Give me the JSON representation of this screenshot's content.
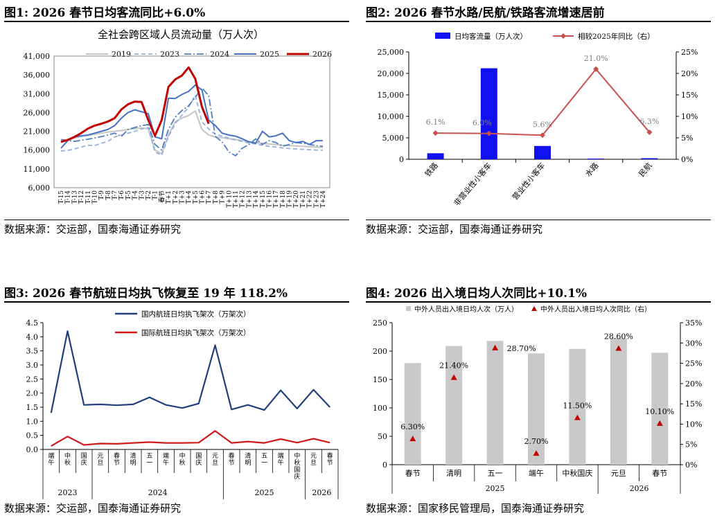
{
  "panels": [
    {
      "title": "图1:  2026 春节日均客流同比+6.0%",
      "source": "数据来源：交运部，国泰海通证券研究"
    },
    {
      "title": "图2:  2026 春节水路/民航/铁路客流增速居前",
      "source": "数据来源：交运部，国泰海通证券研究"
    },
    {
      "title": "图3:  2026 春节航班日均执飞恢复至 19 年 118.2%",
      "source": "数据来源：交运部，国泰海通证券研究"
    },
    {
      "title": "图4:  2026 出入境日均人次同比+10.1%",
      "source": "数据来源：国家移民管理局，国泰海通证券研究"
    }
  ],
  "chart_data": [
    {
      "type": "line",
      "title": "全社会跨区域人员流动量（万人次）",
      "x": [
        "T-15",
        "T-14",
        "T-13",
        "T-12",
        "T-11",
        "T-10",
        "T-9",
        "T-8",
        "T-7",
        "T-6",
        "T-5",
        "T-4",
        "T-3",
        "T-2",
        "T-1",
        "春节",
        "T+1",
        "T+2",
        "T+3",
        "T+4",
        "T+5",
        "T+6",
        "T+7",
        "T+8",
        "T+9",
        "T+10",
        "T+11",
        "T+12",
        "T+13",
        "T+14",
        "T+15",
        "T+16",
        "T+17",
        "T+18",
        "T+19",
        "T+20",
        "T+21",
        "T+22",
        "T+23",
        "T+24"
      ],
      "ylim": [
        6000,
        41000
      ],
      "yticks": [
        6000,
        11000,
        16000,
        21000,
        26000,
        31000,
        36000,
        41000
      ],
      "legend_position": "top",
      "series": [
        {
          "name": "2019",
          "color": "#c8c8c8",
          "dash": "solid",
          "width": 2.2,
          "values": [
            18000,
            18800,
            19200,
            19600,
            19900,
            20200,
            20500,
            20800,
            21000,
            21200,
            21500,
            21700,
            21900,
            21700,
            16000,
            15000,
            20000,
            23500,
            24500,
            25200,
            26400,
            21500,
            20000,
            19500,
            19300,
            19000,
            18800,
            18500,
            18200,
            18000,
            17800,
            17600,
            17500,
            17300,
            17200,
            17100,
            17000,
            16900,
            16800,
            16700
          ]
        },
        {
          "name": "2023",
          "color": "#8fb0dc",
          "dash": "6,4",
          "width": 1.8,
          "values": [
            15800,
            15900,
            16300,
            16800,
            17300,
            17200,
            17800,
            18300,
            19500,
            20000,
            20500,
            21000,
            21600,
            22000,
            15500,
            14600,
            19600,
            23000,
            25300,
            27400,
            30600,
            23500,
            21600,
            20200,
            19700,
            19200,
            18700,
            18300,
            17900,
            17600,
            17300,
            17000,
            16800,
            16600,
            16400,
            16300,
            16200,
            16100,
            16000,
            16000
          ]
        },
        {
          "name": "2024",
          "color": "#4f7fc0",
          "dash": "10,3,2,3",
          "width": 1.8,
          "values": [
            18800,
            18600,
            18300,
            18600,
            18900,
            19200,
            19600,
            20000,
            20500,
            19600,
            21500,
            22000,
            22500,
            22800,
            17500,
            16000,
            21500,
            24700,
            26500,
            27800,
            30000,
            32500,
            30500,
            19600,
            18200,
            15500,
            14500,
            16500,
            17500,
            19000,
            17500,
            18500,
            18000,
            17000,
            17500,
            18000,
            17800,
            17500,
            17200,
            17000
          ]
        },
        {
          "name": "2025",
          "color": "#4472c4",
          "dash": "solid",
          "width": 2.0,
          "values": [
            16500,
            18500,
            19500,
            19800,
            20000,
            20500,
            21000,
            21500,
            22500,
            24500,
            26000,
            26700,
            26200,
            25700,
            19500,
            19000,
            29800,
            29700,
            30800,
            31600,
            33300,
            32000,
            24000,
            22500,
            20500,
            20000,
            19700,
            19000,
            18200,
            17800,
            21000,
            19500,
            19800,
            20500,
            18500,
            18000,
            18300,
            17500,
            18500,
            18500
          ]
        },
        {
          "name": "2026",
          "color": "#c00000",
          "dash": "solid",
          "width": 3.0,
          "values": [
            18200,
            18700,
            19500,
            20500,
            21700,
            22500,
            23000,
            23600,
            24500,
            26800,
            28200,
            28900,
            28800,
            24000,
            19800,
            24000,
            32800,
            34800,
            35800,
            38000,
            35000,
            27500,
            23000,
            null,
            null,
            null,
            null,
            null,
            null,
            null,
            null,
            null,
            null,
            null,
            null,
            null,
            null,
            null,
            null,
            null
          ]
        }
      ]
    },
    {
      "type": "bar",
      "categories": [
        "铁路",
        "非营业性小客车",
        "营业性小客车",
        "水路",
        "民航"
      ],
      "ylim": [
        0,
        25000
      ],
      "yticks": [
        0,
        5000,
        10000,
        15000,
        20000,
        25000
      ],
      "y2lim": [
        0,
        25
      ],
      "y2ticks": [
        "0%",
        "5%",
        "10%",
        "15%",
        "20%",
        "25%"
      ],
      "legend_position": "top",
      "series": [
        {
          "name": "日均客流量（万人次）",
          "kind": "bar",
          "axis": "left",
          "color": "#1010f0",
          "values": [
            1400,
            21200,
            3100,
            100,
            250
          ]
        },
        {
          "name": "相较2025年同比（右）",
          "kind": "line",
          "axis": "right",
          "color": "#c8504f",
          "values": [
            6.1,
            6.0,
            5.6,
            21.0,
            6.3
          ],
          "labels": [
            "6.1%",
            "6.0%",
            "5.6%",
            "21.0%",
            "6.3%"
          ]
        }
      ]
    },
    {
      "type": "line",
      "categories": [
        "端午",
        "中秋",
        "国庆",
        "元旦",
        "春节",
        "清明",
        "五一",
        "端午",
        "中秋",
        "国庆",
        "元旦",
        "春节",
        "清明",
        "五一",
        "端午",
        "中秋国庆",
        "元旦",
        "春节"
      ],
      "groups": [
        {
          "label": "2023",
          "from": 0,
          "to": 2
        },
        {
          "label": "2024",
          "from": 3,
          "to": 10
        },
        {
          "label": "2025",
          "from": 11,
          "to": 15
        },
        {
          "label": "2026",
          "from": 16,
          "to": 17
        }
      ],
      "ylim": [
        0,
        4.5
      ],
      "yticks": [
        "0.0",
        "0.5",
        "1.0",
        "1.5",
        "2.0",
        "2.5",
        "3.0",
        "3.5",
        "4.0",
        "4.5"
      ],
      "legend_position": "top",
      "series": [
        {
          "name": "国内航班日均执飞架次（万架次）",
          "color": "#1f3f7a",
          "values": [
            1.3,
            4.2,
            1.58,
            1.6,
            1.57,
            1.6,
            1.85,
            1.58,
            1.47,
            1.63,
            3.7,
            1.42,
            1.58,
            1.4,
            2.1,
            1.45,
            2.12,
            1.5
          ]
        },
        {
          "name": "国际航班日均执飞架次（万架次）",
          "color": "#d01919",
          "values": [
            0.12,
            0.46,
            0.16,
            0.21,
            0.2,
            0.23,
            0.26,
            0.23,
            0.23,
            0.24,
            0.66,
            0.23,
            0.28,
            0.23,
            0.37,
            0.24,
            0.38,
            0.24
          ]
        }
      ]
    },
    {
      "type": "bar",
      "categories": [
        "春节",
        "清明",
        "五一",
        "端午",
        "中秋国庆",
        "元旦",
        "春节"
      ],
      "groups": [
        {
          "label": "2025",
          "from": 0,
          "to": 4
        },
        {
          "label": "2026",
          "from": 5,
          "to": 6
        }
      ],
      "ylim": [
        0,
        250
      ],
      "yticks": [
        0,
        50,
        100,
        150,
        200,
        250
      ],
      "y2lim": [
        0,
        35
      ],
      "y2ticks": [
        "0%",
        "5%",
        "10%",
        "15%",
        "20%",
        "25%",
        "30%",
        "35%"
      ],
      "legend_position": "top",
      "series": [
        {
          "name": "中外人员出入境日均人次（万人）",
          "kind": "bar",
          "axis": "left",
          "color": "#c9c9c9",
          "values": [
            179,
            209,
            218,
            196,
            204,
            223,
            197
          ]
        },
        {
          "name": "中外人员出入境日均人次同比（右）",
          "kind": "marker",
          "axis": "right",
          "color": "#c00000",
          "values": [
            6.3,
            21.4,
            28.7,
            2.7,
            11.5,
            28.6,
            10.1
          ],
          "labels": [
            "6.30%",
            "21.40%",
            "28.70%",
            "2.70%",
            "11.50%",
            "28.60%",
            "10.10%"
          ]
        }
      ]
    }
  ]
}
